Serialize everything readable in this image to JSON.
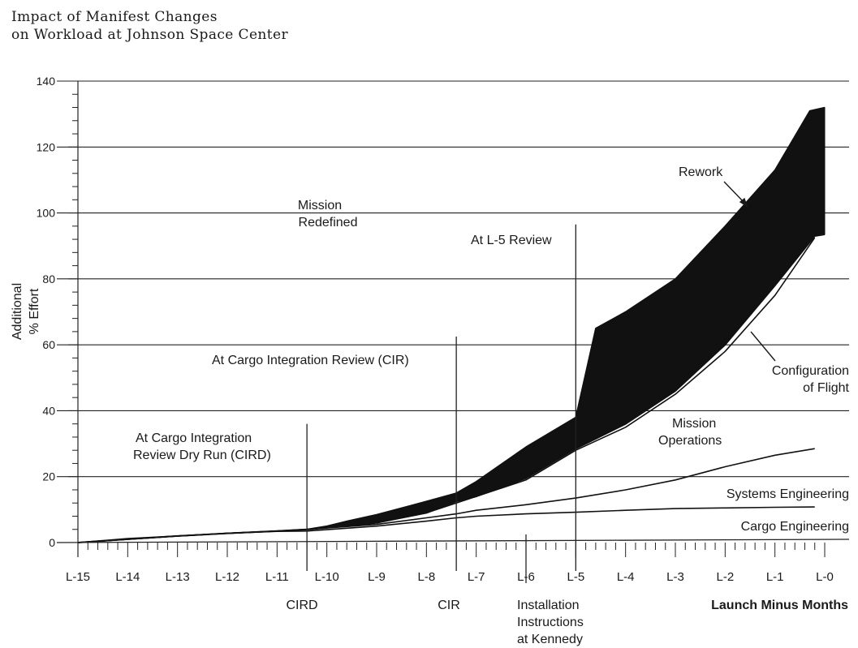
{
  "title": {
    "line1": "Impact of Manifest Changes",
    "line2": "on Workload at Johnson Space Center"
  },
  "chart_data": {
    "type": "area",
    "title": "Impact of Manifest Changes on Workload at Johnson Space Center",
    "ylabel_line1": "Additional",
    "ylabel_line2": "% Effort",
    "xlabel": "Launch Minus Months",
    "ylim": [
      0,
      140
    ],
    "yticks": [
      0,
      20,
      40,
      60,
      80,
      100,
      120,
      140
    ],
    "xlim": [
      -15,
      0
    ],
    "xticks": [
      {
        "x": -15,
        "label": "L-15"
      },
      {
        "x": -14,
        "label": "L-14"
      },
      {
        "x": -13,
        "label": "L-13"
      },
      {
        "x": -12,
        "label": "L-12"
      },
      {
        "x": -11,
        "label": "L-11"
      },
      {
        "x": -10,
        "label": "L-10"
      },
      {
        "x": -9,
        "label": "L-9"
      },
      {
        "x": -8,
        "label": "L-8"
      },
      {
        "x": -7,
        "label": "L-7"
      },
      {
        "x": -6,
        "label": "L-6"
      },
      {
        "x": -5,
        "label": "L-5"
      },
      {
        "x": -4,
        "label": "L-4"
      },
      {
        "x": -3,
        "label": "L-3"
      },
      {
        "x": -2,
        "label": "L-2"
      },
      {
        "x": -1,
        "label": "L-1"
      },
      {
        "x": 0,
        "label": "L-0"
      }
    ],
    "grid": true,
    "series": [
      {
        "name": "Cargo Engineering",
        "points": [
          [
            -15,
            0
          ],
          [
            -14,
            1.2
          ],
          [
            -13,
            2
          ],
          [
            -12,
            2.8
          ],
          [
            -11,
            3.4
          ],
          [
            -10.4,
            3.5
          ],
          [
            -10,
            3.9
          ],
          [
            -9,
            5
          ],
          [
            -8,
            6.5
          ],
          [
            -7.4,
            7.5
          ],
          [
            -7,
            8
          ],
          [
            -6,
            8.7
          ],
          [
            -5,
            9.2
          ],
          [
            -4,
            9.8
          ],
          [
            -3,
            10.3
          ],
          [
            -2,
            10.5
          ],
          [
            -1,
            10.7
          ],
          [
            -0.2,
            10.8
          ]
        ]
      },
      {
        "name": "Systems Engineering",
        "points": [
          [
            -15,
            0
          ],
          [
            -14,
            1
          ],
          [
            -13,
            2
          ],
          [
            -12,
            2.8
          ],
          [
            -11,
            3.5
          ],
          [
            -10.4,
            3.9
          ],
          [
            -10,
            4.4
          ],
          [
            -9,
            5.5
          ],
          [
            -8,
            7.5
          ],
          [
            -7.4,
            8.7
          ],
          [
            -7,
            9.8
          ],
          [
            -6,
            11.5
          ],
          [
            -5,
            13.5
          ],
          [
            -4,
            16
          ],
          [
            -3,
            19
          ],
          [
            -2,
            23
          ],
          [
            -1,
            26.5
          ],
          [
            -0.2,
            28.5
          ]
        ]
      },
      {
        "name": "Mission Operations",
        "points": [
          [
            -15,
            0
          ],
          [
            -14,
            1
          ],
          [
            -13,
            2
          ],
          [
            -12,
            2.8
          ],
          [
            -11,
            3.5
          ],
          [
            -10.4,
            4
          ],
          [
            -10,
            4.5
          ],
          [
            -9,
            6
          ],
          [
            -8,
            9
          ],
          [
            -7.4,
            12
          ],
          [
            -7,
            14
          ],
          [
            -6,
            19
          ],
          [
            -5,
            28
          ],
          [
            -4,
            35
          ],
          [
            -3,
            45
          ],
          [
            -2,
            58
          ],
          [
            -1,
            75
          ],
          [
            -0.2,
            92.5
          ]
        ]
      },
      {
        "name": "Configuration of Flight",
        "points": [
          [
            -15,
            0
          ],
          [
            -14,
            1
          ],
          [
            -13,
            2
          ],
          [
            -12,
            2.8
          ],
          [
            -11,
            3.5
          ],
          [
            -10.4,
            4
          ],
          [
            -10,
            4.5
          ],
          [
            -9,
            6
          ],
          [
            -8,
            9
          ],
          [
            -7.4,
            12.5
          ],
          [
            -7,
            14
          ],
          [
            -6,
            19.5
          ],
          [
            -5,
            28.5
          ],
          [
            -4,
            36
          ],
          [
            -3,
            46
          ],
          [
            -2,
            60
          ],
          [
            -1,
            78
          ],
          [
            -0.2,
            93
          ],
          [
            0,
            93.5
          ]
        ]
      },
      {
        "name": "Rework",
        "points": [
          [
            -15,
            0
          ],
          [
            -14,
            1
          ],
          [
            -13,
            2
          ],
          [
            -12,
            2.8
          ],
          [
            -11,
            3.5
          ],
          [
            -10.4,
            4
          ],
          [
            -10,
            5
          ],
          [
            -9.6,
            6.5
          ],
          [
            -9,
            8.5
          ],
          [
            -8,
            12.5
          ],
          [
            -7.4,
            15
          ],
          [
            -7,
            18.5
          ],
          [
            -6,
            29
          ],
          [
            -5,
            38
          ],
          [
            -4.6,
            65
          ],
          [
            -4,
            70
          ],
          [
            -3,
            80
          ],
          [
            -2,
            96
          ],
          [
            -1,
            113
          ],
          [
            -0.3,
            131
          ],
          [
            0,
            132
          ]
        ]
      }
    ],
    "band": {
      "upper": "Rework",
      "lower": "Configuration of Flight",
      "right_bottom": 100
    },
    "milestones": [
      {
        "x": -10.4,
        "top": 36,
        "axis_label": "CIRD",
        "annotation_line1": "At Cargo Integration",
        "annotation_line2": "Review Dry Run (CIRD)"
      },
      {
        "x": -7.4,
        "top": 62.5,
        "axis_label": "CIR",
        "annotation_line1": "At Cargo Integration Review (CIR)"
      },
      {
        "x": -5,
        "top": 96.5,
        "annotation_line1": "At L-5 Review"
      },
      {
        "x": -6,
        "axis_label_line1": "Installation",
        "axis_label_line2": "Instructions",
        "axis_label_line3": "at Kennedy"
      }
    ],
    "annotations": {
      "mission_redefined_line1": "Mission",
      "mission_redefined_line2": "Redefined",
      "rework": "Rework",
      "configuration_line1": "Configuration",
      "configuration_line2": "of Flight",
      "mission_ops_line1": "Mission",
      "mission_ops_line2": "Operations",
      "systems_engineering": "Systems Engineering",
      "cargo_engineering": "Cargo Engineering"
    }
  }
}
